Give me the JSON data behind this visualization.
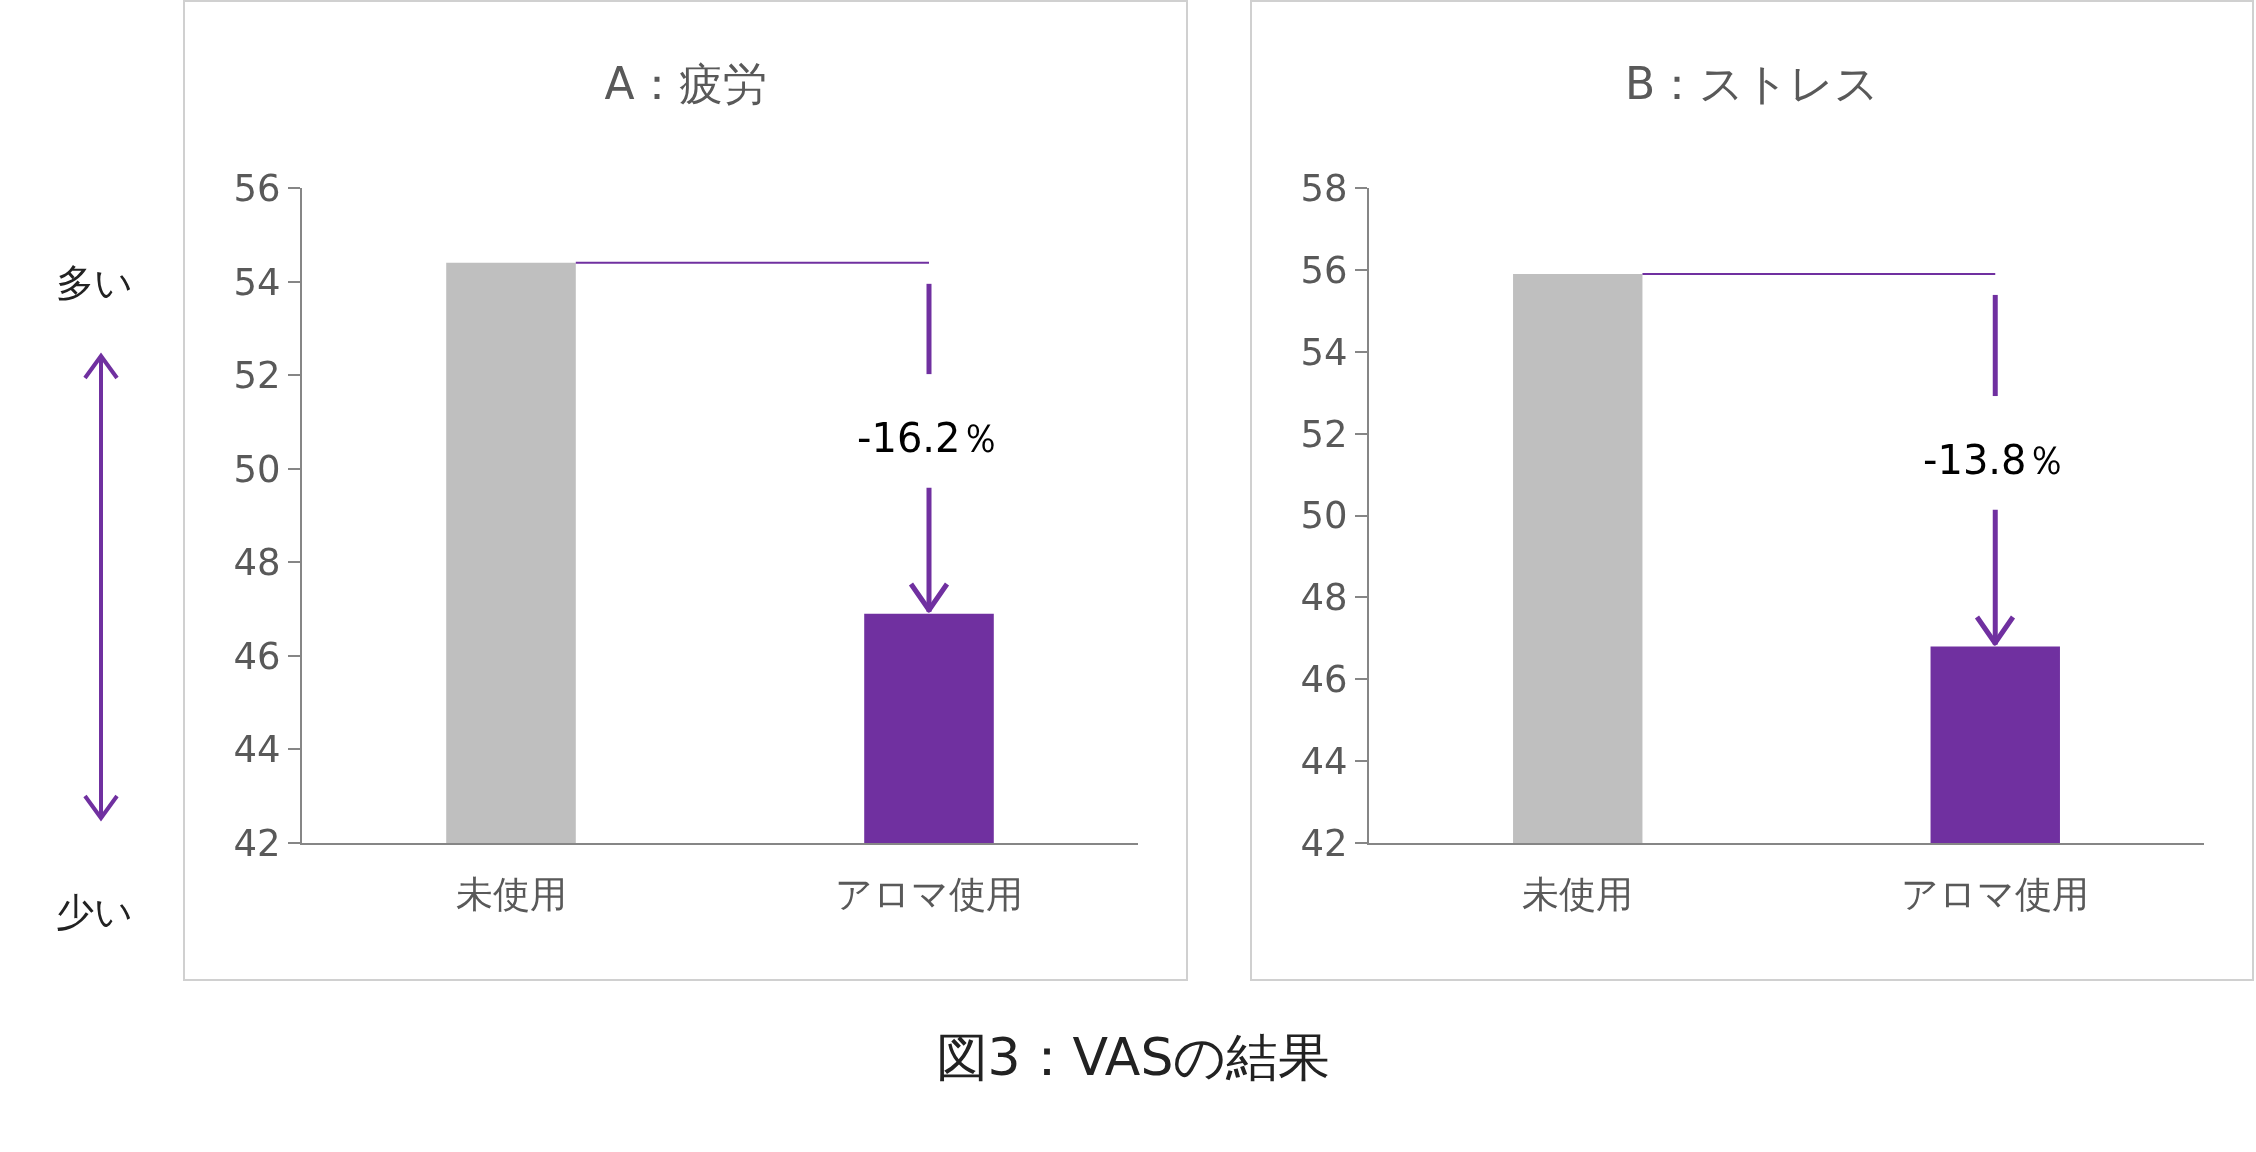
{
  "chart_data": [
    {
      "type": "bar",
      "title": "A：疲労",
      "categories": [
        "未使用",
        "アロマ使用"
      ],
      "values": [
        54.4,
        46.9
      ],
      "colors": [
        "#bfbfbf",
        "#7030a0"
      ],
      "ylim": [
        42,
        56
      ],
      "yticks": [
        42,
        44,
        46,
        48,
        50,
        52,
        54,
        56
      ],
      "grid": false,
      "ref_lines": [
        {
          "axis": "y",
          "value": 54.4,
          "color": "#7030a0"
        }
      ],
      "annotations": [
        {
          "text": "-16.2％",
          "x": "アロマ使用",
          "y": 46.9
        },
        "多い",
        "少い",
        "図3：VASの結果"
      ]
    },
    {
      "type": "bar",
      "title": "B：ストレス",
      "categories": [
        "未使用",
        "アロマ使用"
      ],
      "values": [
        55.9,
        46.8
      ],
      "colors": [
        "#bfbfbf",
        "#7030a0"
      ],
      "ylim": [
        42,
        58
      ],
      "yticks": [
        42,
        44,
        46,
        48,
        50,
        52,
        54,
        56,
        58
      ],
      "grid": false,
      "ref_lines": [
        {
          "axis": "y",
          "value": 55.9,
          "color": "#7030a0"
        }
      ],
      "annotations": [
        {
          "text": "-13.8％",
          "x": "アロマ使用",
          "y": 46.8
        }
      ]
    }
  ]
}
